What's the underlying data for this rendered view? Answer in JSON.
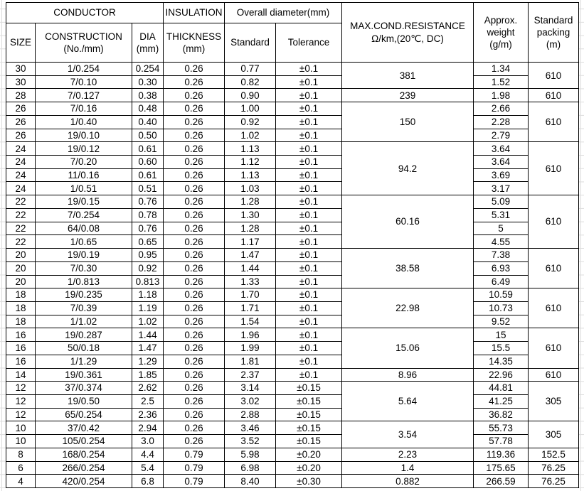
{
  "table": {
    "header": {
      "conductor": "CONDUCTOR",
      "insulation": "INSULATION",
      "overall_diameter": "Overall diameter(mm)",
      "resistance": "MAX.COND.RESISTANCE\nΩ/km,(20℃, DC)",
      "approx_weight": "Approx.\nweight\n(g/m)",
      "standard_packing": "Standard\npacking\n(m)",
      "size": "SIZE",
      "construction": "CONSTRUCTION\n(No./mm)",
      "dia": "DIA\n(mm)",
      "thickness": "THICKNESS\n(mm)",
      "standard": "Standard",
      "tolerance": "Tolerance"
    },
    "groups": [
      {
        "resistance": "381",
        "packing": "610",
        "rows": [
          {
            "size": "30",
            "construction": "1/0.254",
            "dia": "0.254",
            "thickness": "0.26",
            "standard": "0.77",
            "tolerance": "±0.1",
            "weight": "1.34"
          },
          {
            "size": "30",
            "construction": "7/0.10",
            "dia": "0.30",
            "thickness": "0.26",
            "standard": "0.82",
            "tolerance": "±0.1",
            "weight": "1.52"
          }
        ]
      },
      {
        "resistance": "239",
        "packing": "610",
        "rows": [
          {
            "size": "28",
            "construction": "7/0.127",
            "dia": "0.38",
            "thickness": "0.26",
            "standard": "0.90",
            "tolerance": "±0.1",
            "weight": "1.98"
          }
        ]
      },
      {
        "resistance": "150",
        "packing": "610",
        "rows": [
          {
            "size": "26",
            "construction": "7/0.16",
            "dia": "0.48",
            "thickness": "0.26",
            "standard": "1.00",
            "tolerance": "±0.1",
            "weight": "2.66"
          },
          {
            "size": "26",
            "construction": "1/0.40",
            "dia": "0.40",
            "thickness": "0.26",
            "standard": "0.92",
            "tolerance": "±0.1",
            "weight": "2.28"
          },
          {
            "size": "26",
            "construction": "19/0.10",
            "dia": "0.50",
            "thickness": "0.26",
            "standard": "1.02",
            "tolerance": "±0.1",
            "weight": "2.79"
          }
        ]
      },
      {
        "resistance": "94.2",
        "packing": "610",
        "rows": [
          {
            "size": "24",
            "construction": "19/0.12",
            "dia": "0.61",
            "thickness": "0.26",
            "standard": "1.13",
            "tolerance": "±0.1",
            "weight": "3.64"
          },
          {
            "size": "24",
            "construction": "7/0.20",
            "dia": "0.60",
            "thickness": "0.26",
            "standard": "1.12",
            "tolerance": "±0.1",
            "weight": "3.64"
          },
          {
            "size": "24",
            "construction": "11/0.16",
            "dia": "0.61",
            "thickness": "0.26",
            "standard": "1.13",
            "tolerance": "±0.1",
            "weight": "3.69"
          },
          {
            "size": "24",
            "construction": "1/0.51",
            "dia": "0.51",
            "thickness": "0.26",
            "standard": "1.03",
            "tolerance": "±0.1",
            "weight": "3.17"
          }
        ]
      },
      {
        "resistance": "60.16",
        "packing": "610",
        "rows": [
          {
            "size": "22",
            "construction": "19/0.15",
            "dia": "0.76",
            "thickness": "0.26",
            "standard": "1.28",
            "tolerance": "±0.1",
            "weight": "5.09"
          },
          {
            "size": "22",
            "construction": "7/0.254",
            "dia": "0.78",
            "thickness": "0.26",
            "standard": "1.30",
            "tolerance": "±0.1",
            "weight": "5.31"
          },
          {
            "size": "22",
            "construction": "64/0.08",
            "dia": "0.76",
            "thickness": "0.26",
            "standard": "1.28",
            "tolerance": "±0.1",
            "weight": "5"
          },
          {
            "size": "22",
            "construction": "1/0.65",
            "dia": "0.65",
            "thickness": "0.26",
            "standard": "1.17",
            "tolerance": "±0.1",
            "weight": "4.55"
          }
        ]
      },
      {
        "resistance": "38.58",
        "packing": "610",
        "rows": [
          {
            "size": "20",
            "construction": "19/0.19",
            "dia": "0.95",
            "thickness": "0.26",
            "standard": "1.47",
            "tolerance": "±0.1",
            "weight": "7.38"
          },
          {
            "size": "20",
            "construction": "7/0.30",
            "dia": "0.92",
            "thickness": "0.26",
            "standard": "1.44",
            "tolerance": "±0.1",
            "weight": "6.93"
          },
          {
            "size": "20",
            "construction": "1/0.813",
            "dia": "0.813",
            "thickness": "0.26",
            "standard": "1.33",
            "tolerance": "±0.1",
            "weight": "6.49"
          }
        ]
      },
      {
        "resistance": "22.98",
        "packing": "610",
        "rows": [
          {
            "size": "18",
            "construction": "19/0.235",
            "dia": "1.18",
            "thickness": "0.26",
            "standard": "1.70",
            "tolerance": "±0.1",
            "weight": "10.59"
          },
          {
            "size": "18",
            "construction": "7/0.39",
            "dia": "1.19",
            "thickness": "0.26",
            "standard": "1.71",
            "tolerance": "±0.1",
            "weight": "10.73"
          },
          {
            "size": "18",
            "construction": "1/1.02",
            "dia": "1.02",
            "thickness": "0.26",
            "standard": "1.54",
            "tolerance": "±0.1",
            "weight": "9.52"
          }
        ]
      },
      {
        "resistance": "15.06",
        "packing": "610",
        "rows": [
          {
            "size": "16",
            "construction": "19/0.287",
            "dia": "1.44",
            "thickness": "0.26",
            "standard": "1.96",
            "tolerance": "±0.1",
            "weight": "15"
          },
          {
            "size": "16",
            "construction": "50/0.18",
            "dia": "1.47",
            "thickness": "0.26",
            "standard": "1.99",
            "tolerance": "±0.1",
            "weight": "15.5"
          },
          {
            "size": "16",
            "construction": "1/1.29",
            "dia": "1.29",
            "thickness": "0.26",
            "standard": "1.81",
            "tolerance": "±0.1",
            "weight": "14.35"
          }
        ]
      },
      {
        "resistance": "8.96",
        "packing": "610",
        "rows": [
          {
            "size": "14",
            "construction": "19/0.361",
            "dia": "1.85",
            "thickness": "0.26",
            "standard": "2.37",
            "tolerance": "±0.1",
            "weight": "22.96"
          }
        ]
      },
      {
        "resistance": "5.64",
        "packing": "305",
        "rows": [
          {
            "size": "12",
            "construction": "37/0.374",
            "dia": "2.62",
            "thickness": "0.26",
            "standard": "3.14",
            "tolerance": "±0.15",
            "weight": "44.81"
          },
          {
            "size": "12",
            "construction": "19/0.50",
            "dia": "2.5",
            "thickness": "0.26",
            "standard": "3.02",
            "tolerance": "±0.15",
            "weight": "41.25"
          },
          {
            "size": "12",
            "construction": "65/0.254",
            "dia": "2.36",
            "thickness": "0.26",
            "standard": "2.88",
            "tolerance": "±0.15",
            "weight": "36.82"
          }
        ]
      },
      {
        "resistance": "3.54",
        "packing": "305",
        "rows": [
          {
            "size": "10",
            "construction": "37/0.42",
            "dia": "2.94",
            "thickness": "0.26",
            "standard": "3.46",
            "tolerance": "±0.15",
            "weight": "55.73"
          },
          {
            "size": "10",
            "construction": "105/0.254",
            "dia": "3.0",
            "thickness": "0.26",
            "standard": "3.52",
            "tolerance": "±0.15",
            "weight": "57.78"
          }
        ]
      },
      {
        "resistance": "2.23",
        "packing": "152.5",
        "rows": [
          {
            "size": "8",
            "construction": "168/0.254",
            "dia": "4.4",
            "thickness": "0.79",
            "standard": "5.98",
            "tolerance": "±0.20",
            "weight": "119.36"
          }
        ]
      },
      {
        "resistance": "1.4",
        "packing": "76.25",
        "rows": [
          {
            "size": "6",
            "construction": "266/0.254",
            "dia": "5.4",
            "thickness": "0.79",
            "standard": "6.98",
            "tolerance": "±0.20",
            "weight": "175.65"
          }
        ]
      },
      {
        "resistance": "0.882",
        "packing": "76.25",
        "rows": [
          {
            "size": "4",
            "construction": "420/0.254",
            "dia": "6.8",
            "thickness": "0.79",
            "standard": "8.40",
            "tolerance": "±0.30",
            "weight": "266.59"
          }
        ]
      }
    ]
  }
}
